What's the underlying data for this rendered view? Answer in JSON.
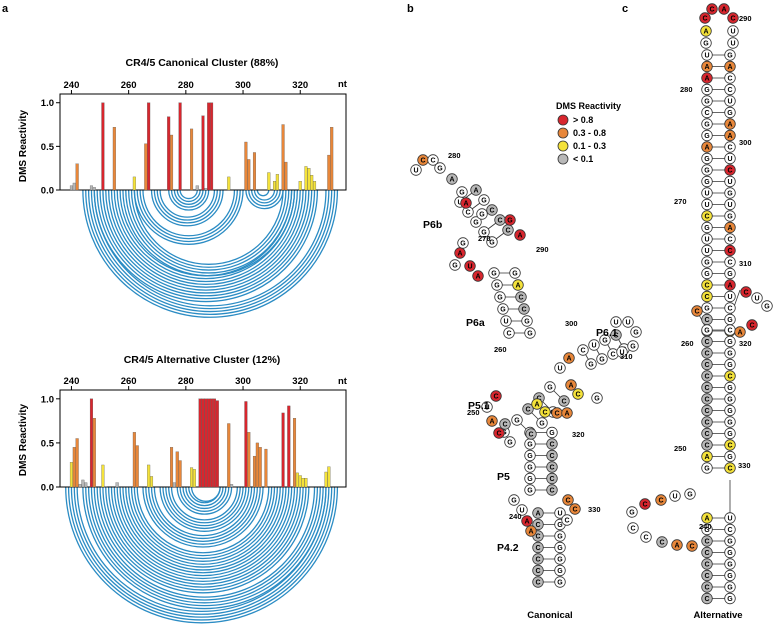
{
  "panels": {
    "a": "a",
    "b": "b",
    "c": "c"
  },
  "colors": {
    "high": "#d8262e",
    "mid": "#e8873a",
    "low": "#f4e23a",
    "none": "#b8b8b8",
    "arc": "#2b8cc4"
  },
  "legend": {
    "title": "DMS Reactivity",
    "items": [
      {
        "label": "> 0.8",
        "key": "high"
      },
      {
        "label": "0.3 - 0.8",
        "key": "mid"
      },
      {
        "label": "0.1 - 0.3",
        "key": "low"
      },
      {
        "label": "< 0.1",
        "key": "none"
      }
    ]
  },
  "chart_data": [
    {
      "type": "bar",
      "title": "CR4/5 Canonical Cluster (88%)",
      "ylabel": "DMS Reactivity",
      "xlabel": "nt",
      "xticks": [
        240,
        260,
        280,
        300,
        320
      ],
      "yticks": [
        "0.0",
        "0.5",
        "1.0"
      ],
      "xlim": [
        236,
        336
      ],
      "ylim": [
        0,
        1.1
      ],
      "positions": [
        240,
        241,
        242,
        248,
        247,
        251,
        255,
        262,
        266,
        267,
        274,
        275,
        278,
        282,
        284,
        286,
        287,
        288,
        289,
        295,
        301,
        302,
        304,
        309,
        311,
        312,
        314,
        315,
        320,
        322,
        323,
        324,
        325,
        330,
        331
      ],
      "values": [
        0.05,
        0.08,
        0.3,
        0.03,
        0.05,
        1.0,
        0.72,
        0.15,
        0.53,
        1.0,
        0.84,
        0.63,
        1.0,
        0.7,
        0.05,
        0.85,
        0.02,
        1.0,
        1.0,
        0.15,
        0.55,
        0.35,
        0.43,
        0.2,
        0.1,
        0.18,
        0.75,
        0.32,
        0.1,
        0.27,
        0.25,
        0.17,
        0.1,
        0.4,
        0.72
      ],
      "arcs": [
        {
          "i": 244,
          "j": 333,
          "n": 5
        },
        {
          "i": 248,
          "j": 326,
          "n": 5
        },
        {
          "i": 253,
          "j": 321,
          "n": 5
        },
        {
          "i": 258,
          "j": 318,
          "n": 5
        },
        {
          "i": 262,
          "j": 300,
          "n": 4
        },
        {
          "i": 268,
          "j": 293,
          "n": 4
        },
        {
          "i": 274,
          "j": 288,
          "n": 5
        },
        {
          "i": 301,
          "j": 314,
          "n": 4
        },
        {
          "i": 305,
          "j": 309,
          "n": 1
        }
      ]
    },
    {
      "type": "bar",
      "title": "CR4/5 Alternative Cluster (12%)",
      "ylabel": "DMS Reactivity",
      "xlabel": "nt",
      "xticks": [
        240,
        260,
        280,
        300,
        320
      ],
      "yticks": [
        "0.0",
        "0.5",
        "1.0"
      ],
      "xlim": [
        236,
        336
      ],
      "ylim": [
        0,
        1.1
      ],
      "positions": [
        240,
        241,
        242,
        243,
        244,
        245,
        247,
        248,
        251,
        252,
        256,
        262,
        263,
        267,
        268,
        275,
        276,
        277,
        278,
        282,
        283,
        285,
        286,
        287,
        288,
        289,
        290,
        291,
        295,
        296,
        301,
        302,
        304,
        305,
        306,
        308,
        314,
        316,
        318,
        319,
        320,
        321,
        322,
        329,
        330
      ],
      "values": [
        0.28,
        0.45,
        0.55,
        0.03,
        0.08,
        0.05,
        1.0,
        0.78,
        0.25,
        0.0,
        0.05,
        0.62,
        0.47,
        0.25,
        0.12,
        0.45,
        0.05,
        0.4,
        0.3,
        0.22,
        0.2,
        1.0,
        1.0,
        1.0,
        1.0,
        1.0,
        1.0,
        0.98,
        0.72,
        0.03,
        0.97,
        0.62,
        0.35,
        0.5,
        0.45,
        0.43,
        0.84,
        0.92,
        0.78,
        0.16,
        0.13,
        0.1,
        0.1,
        0.17,
        0.23
      ],
      "arcs": [
        {
          "i": 238,
          "j": 333,
          "n": 5
        },
        {
          "i": 244,
          "j": 329,
          "n": 5
        },
        {
          "i": 249,
          "j": 323,
          "n": 5
        },
        {
          "i": 254,
          "j": 318,
          "n": 5
        },
        {
          "i": 259,
          "j": 313,
          "n": 5
        },
        {
          "i": 265,
          "j": 307,
          "n": 5
        },
        {
          "i": 271,
          "j": 302,
          "n": 5
        },
        {
          "i": 277,
          "j": 296,
          "n": 5
        },
        {
          "i": 282,
          "j": 292,
          "n": 1
        }
      ]
    }
  ],
  "canonical": {
    "caption": "Canonical",
    "helices": [
      "P6b",
      "P6a",
      "P6.1",
      "P5.1",
      "P5",
      "P4.2"
    ],
    "numbers": [
      "280",
      "270",
      "290",
      "260",
      "300",
      "310",
      "250",
      "320",
      "330",
      "240"
    ]
  },
  "alternative": {
    "caption": "Alternative",
    "numbers": [
      "290",
      "280",
      "300",
      "270",
      "310",
      "260",
      "320",
      "250",
      "330",
      "240"
    ]
  }
}
